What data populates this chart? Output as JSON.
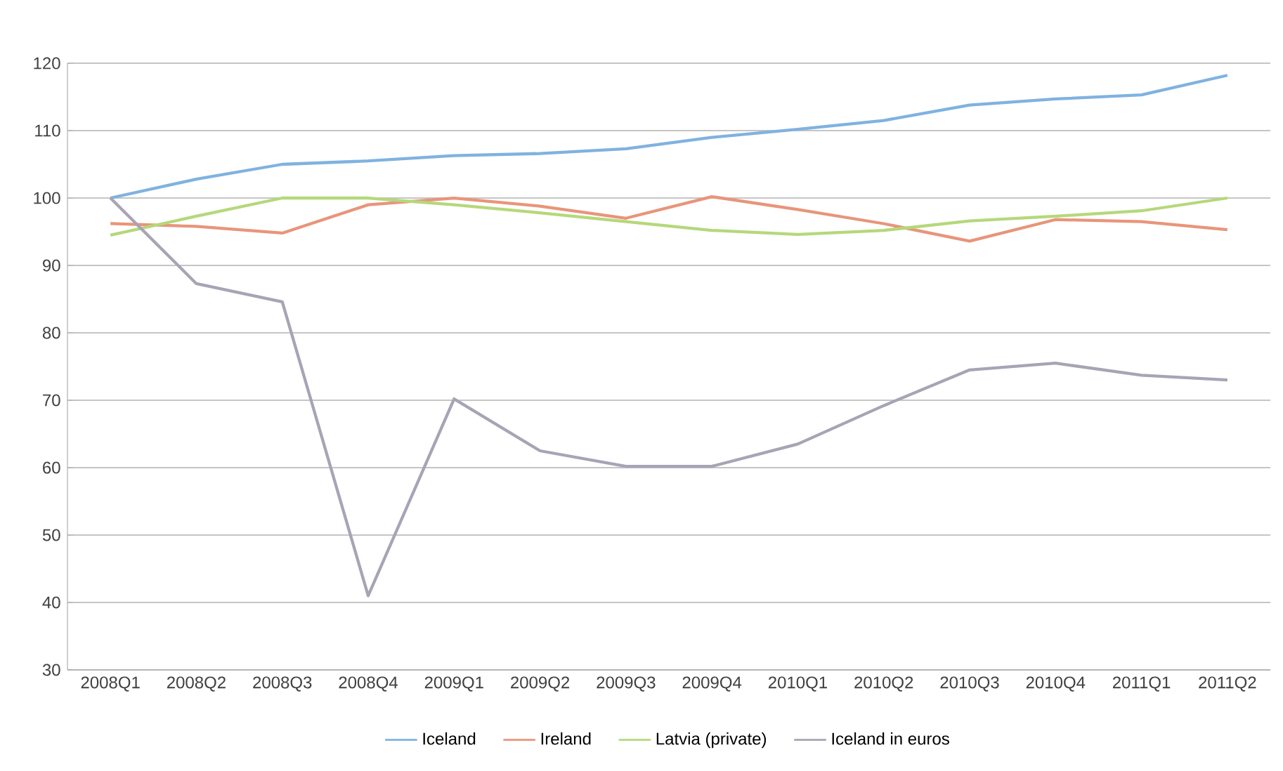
{
  "chart_data": {
    "type": "line",
    "categories": [
      "2008Q1",
      "2008Q2",
      "2008Q3",
      "2008Q4",
      "2009Q1",
      "2009Q2",
      "2009Q3",
      "2009Q4",
      "2010Q1",
      "2010Q2",
      "2010Q3",
      "2010Q4",
      "2011Q1",
      "2011Q2"
    ],
    "series": [
      {
        "name": "Iceland",
        "color": "#7fb2e0",
        "values": [
          100,
          102.8,
          105,
          105.5,
          106.3,
          106.6,
          107.3,
          109,
          110.2,
          111.5,
          113.8,
          114.7,
          115.3,
          118.2
        ]
      },
      {
        "name": "Ireland",
        "color": "#e8957a",
        "values": [
          96.2,
          95.8,
          94.8,
          99,
          100,
          98.8,
          97,
          100.2,
          98.3,
          96.2,
          93.6,
          96.8,
          96.5,
          95.3
        ]
      },
      {
        "name": "Latvia (private)",
        "color": "#b5d87a",
        "values": [
          94.5,
          97.3,
          100,
          100,
          99,
          97.8,
          96.5,
          95.2,
          94.6,
          95.2,
          96.6,
          97.3,
          98.1,
          100
        ]
      },
      {
        "name": "Iceland in euros",
        "color": "#a8a3b5",
        "values": [
          100,
          87.3,
          84.6,
          41,
          70.2,
          62.5,
          60.2,
          60.2,
          63.5,
          69.2,
          74.5,
          75.5,
          73.7,
          73
        ]
      }
    ],
    "ylim": [
      30,
      120
    ],
    "yticks": [
      30,
      40,
      50,
      60,
      70,
      80,
      90,
      100,
      110,
      120
    ],
    "grid": "y",
    "legend": "bottom",
    "marker": "none",
    "line_style": "solid"
  }
}
